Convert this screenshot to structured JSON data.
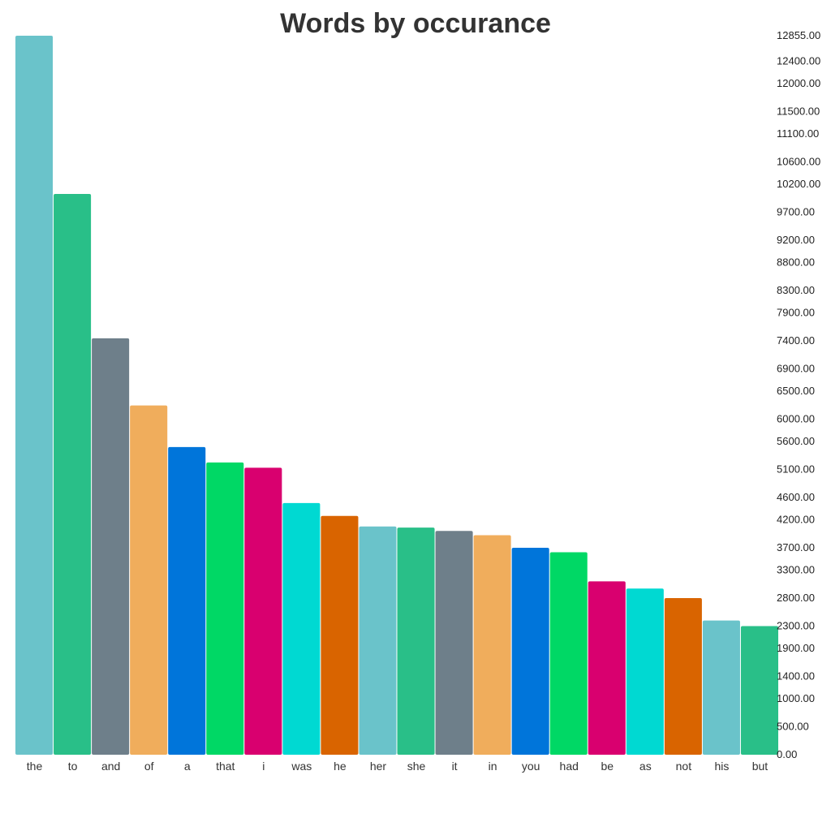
{
  "chart_data": {
    "type": "bar",
    "title": "Words by occurance",
    "xlabel": "",
    "ylabel": "",
    "categories": [
      "the",
      "to",
      "and",
      "of",
      "a",
      "that",
      "i",
      "was",
      "he",
      "her",
      "she",
      "it",
      "in",
      "you",
      "had",
      "be",
      "as",
      "not",
      "his",
      "but"
    ],
    "values": [
      12855,
      10025,
      7445,
      6245,
      5500,
      5225,
      5130,
      4500,
      4270,
      4080,
      4060,
      4000,
      3925,
      3700,
      3620,
      3100,
      2970,
      2800,
      2400,
      2300
    ],
    "colors": [
      "#6ac3ca",
      "#29bf88",
      "#6e7f8a",
      "#f0ad5c",
      "#0075da",
      "#00d865",
      "#d9006f",
      "#00d9d2",
      "#d96400",
      "#6ac3ca",
      "#29bf88",
      "#6e7f8a",
      "#f0ad5c",
      "#0075da",
      "#00d865",
      "#d9006f",
      "#00d9d2",
      "#d96400",
      "#6ac3ca",
      "#29bf88"
    ],
    "y_ticks": [
      "0.00",
      "500.00",
      "1000.00",
      "1400.00",
      "1900.00",
      "2300.00",
      "2800.00",
      "3300.00",
      "3700.00",
      "4200.00",
      "4600.00",
      "5100.00",
      "5600.00",
      "6000.00",
      "6500.00",
      "6900.00",
      "7400.00",
      "7900.00",
      "8300.00",
      "8800.00",
      "9200.00",
      "9700.00",
      "10200.00",
      "10600.00",
      "11100.00",
      "11500.00",
      "12000.00",
      "12400.00",
      "12855.00"
    ],
    "ylim": [
      0,
      12855
    ],
    "axis_position": "right",
    "grid": false,
    "legend": "none"
  }
}
